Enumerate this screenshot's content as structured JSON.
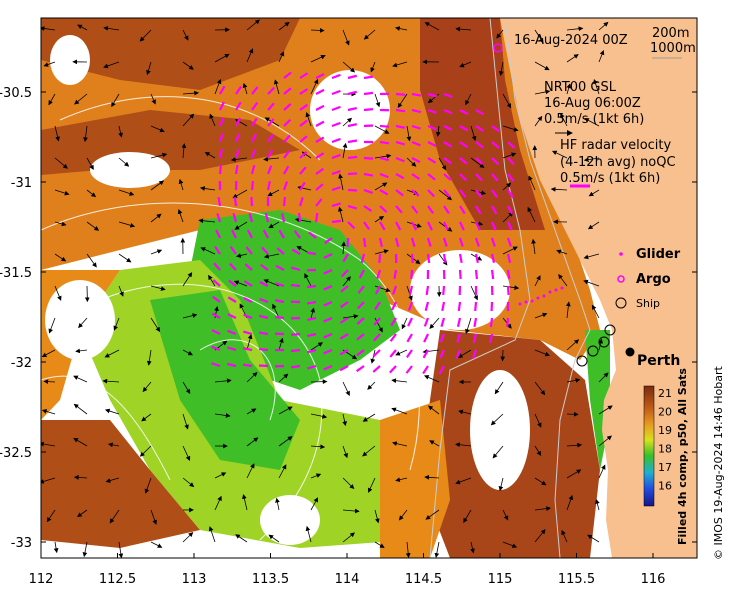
{
  "map": {
    "header": "16-Aug-2024 00Z",
    "isobath_labels": [
      "200m",
      "1000m"
    ],
    "nrt_label": "NRT00 GSL",
    "nrt_time": "16-Aug 06:00Z",
    "nrt_scale": "0.5m/s (1kt 6h)",
    "hf_label": "HF radar velocity",
    "hf_avg": "(4-12h avg) noQC",
    "hf_scale": "0.5m/s (1kt 6h)",
    "legend": [
      {
        "symbol": "dot",
        "label": "Glider",
        "color": "#ff00ff"
      },
      {
        "symbol": "ring",
        "label": "Argo",
        "color": "#ff00ff"
      },
      {
        "symbol": "ring",
        "label": "Ship",
        "color": "#000000"
      }
    ],
    "city": "Perth",
    "colorbar_title": "Filled 4h comp, p50, All Sats",
    "colorbar_ticks": [
      "21",
      "20",
      "19",
      "18",
      "17",
      "16"
    ],
    "credit": "© IMOS 19-Aug-2024 14:46 Hobart",
    "x_ticks": [
      "112",
      "112.5",
      "113",
      "113.5",
      "114",
      "114.5",
      "115",
      "115.5",
      "116"
    ],
    "y_ticks": [
      "-30.5",
      "-31",
      "-31.5",
      "-32",
      "-32.5",
      "-33"
    ],
    "colors": {
      "land": "#f9c08f",
      "warm": "#a8461a",
      "mid": "#e88a18",
      "cool": "#3fbe28",
      "arrow_magenta": "#ff00ff"
    }
  }
}
